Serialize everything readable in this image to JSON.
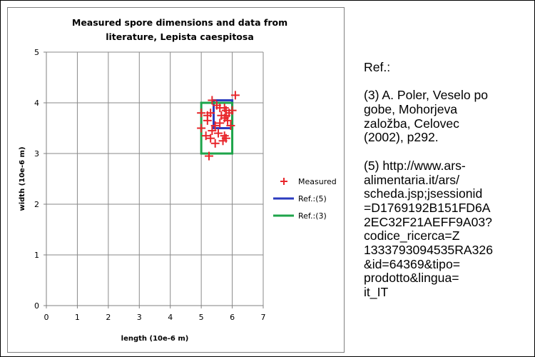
{
  "chart_data": {
    "type": "scatter",
    "title_lines": [
      "Measured spore dimensions and data from",
      "literature, Lepista caespitosa"
    ],
    "xlabel": "length (10e-6 m)",
    "ylabel": "width (10e-6 m)",
    "xlim": [
      0,
      7
    ],
    "ylim": [
      0,
      5
    ],
    "xticks": [
      "0",
      "1",
      "2",
      "3",
      "4",
      "5",
      "6",
      "7"
    ],
    "yticks": [
      "0",
      "1",
      "2",
      "3",
      "4",
      "5"
    ],
    "grid": true,
    "legend_position": "right",
    "series": [
      {
        "name": "Measured",
        "kind": "markers",
        "marker": "plus",
        "color": "#e8262b",
        "points": [
          [
            5.35,
            4.05
          ],
          [
            6.1,
            4.15
          ],
          [
            5.0,
            3.8
          ],
          [
            5.2,
            3.75
          ],
          [
            5.3,
            3.8
          ],
          [
            5.2,
            3.65
          ],
          [
            5.5,
            3.95
          ],
          [
            5.6,
            3.9
          ],
          [
            5.75,
            3.9
          ],
          [
            5.8,
            3.85
          ],
          [
            5.65,
            3.75
          ],
          [
            5.75,
            3.7
          ],
          [
            5.8,
            3.75
          ],
          [
            5.9,
            3.8
          ],
          [
            6.0,
            3.85
          ],
          [
            5.85,
            3.65
          ],
          [
            5.6,
            3.6
          ],
          [
            5.45,
            3.55
          ],
          [
            5.95,
            3.55
          ],
          [
            5.0,
            3.5
          ],
          [
            5.35,
            3.45
          ],
          [
            5.55,
            3.4
          ],
          [
            5.15,
            3.35
          ],
          [
            5.3,
            3.3
          ],
          [
            5.75,
            3.35
          ],
          [
            5.8,
            3.3
          ],
          [
            5.45,
            3.2
          ],
          [
            5.7,
            3.25
          ],
          [
            5.25,
            2.95
          ]
        ]
      },
      {
        "name": "Ref.:(5)",
        "kind": "rectangle",
        "color": "#2b3bbf",
        "x_range": [
          5.4,
          6.0
        ],
        "y_range": [
          3.5,
          4.05
        ]
      },
      {
        "name": "Ref.:(3)",
        "kind": "rectangle",
        "color": "#1ea44a",
        "x_range": [
          5.0,
          6.0
        ],
        "y_range": [
          3.0,
          4.0
        ]
      }
    ]
  },
  "ref_panel": {
    "heading": "Ref.:",
    "ref3_lines": [
      "(3) A. Poler, Veselo po",
      "gobe, Mohorjeva",
      "založba, Celovec",
      "(2002), p292."
    ],
    "ref5_lines": [
      "(5) http://www.ars-",
      "alimentaria.it/ars/",
      "scheda.jsp;jsessionid",
      "=D1769192B151FD6A",
      "2EC32F21AEFF9A03?",
      "codice_ricerca=Z",
      "1333793094535RA326",
      "&id=64369&tipo=",
      "prodotto&lingua=",
      "it_IT"
    ]
  }
}
